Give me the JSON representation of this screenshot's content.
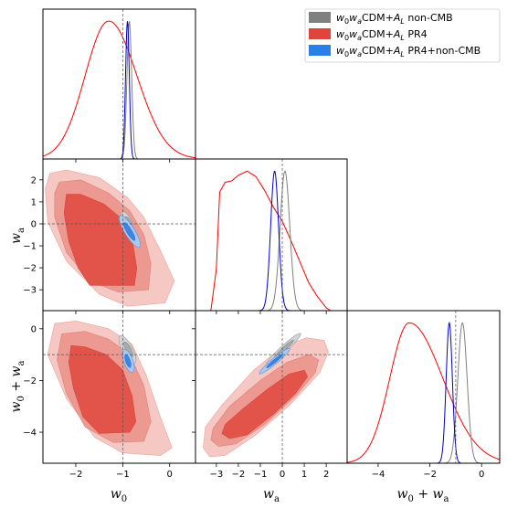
{
  "chart_data": {
    "type": "triangle-contour",
    "parameters": [
      {
        "key": "w0",
        "label_main": "w",
        "label_sub": "0"
      },
      {
        "key": "wa",
        "label_main": "w",
        "label_sub": "a"
      },
      {
        "key": "w0wa",
        "label_main": "w",
        "label_sub": "0",
        "label_suffix": " + w",
        "label_sub2": "a"
      }
    ],
    "ranges": {
      "w0": [
        -2.7,
        0.55
      ],
      "wa": [
        -3.95,
        2.95
      ],
      "w0wa": [
        -5.2,
        0.7
      ]
    },
    "ticks": {
      "w0": [
        -2,
        -1,
        0
      ],
      "wa": [
        -3,
        -2,
        -1,
        0,
        1,
        2
      ],
      "w0wa_y": [
        -4,
        -2,
        0
      ],
      "w0wa_x": [
        -4,
        -2,
        0
      ]
    },
    "tick_labels": {
      "w0": [
        "−2",
        "−1",
        "0"
      ],
      "wa": [
        "−3",
        "−2",
        "−1",
        "0",
        "1",
        "2"
      ],
      "w0wa_y": [
        "−4",
        "−2",
        "0"
      ],
      "w0wa_x": [
        "−4",
        "−2",
        "0"
      ]
    },
    "reference": {
      "w0": -1,
      "wa": 0,
      "w0wa": -1
    },
    "legend": {
      "placement": "top-right",
      "entries": [
        {
          "pre": "w",
          "sub1": "0",
          "mid": "w",
          "sub2": "a",
          "post": "CDM+",
          "al": "A",
          "alsub": "L",
          "tail": " non-CMB",
          "color": "#808080"
        },
        {
          "pre": "w",
          "sub1": "0",
          "mid": "w",
          "sub2": "a",
          "post": "CDM+",
          "al": "A",
          "alsub": "L",
          "tail": " PR4",
          "color": "#e0453b"
        },
        {
          "pre": "w",
          "sub1": "0",
          "mid": "w",
          "sub2": "a",
          "post": "CDM+",
          "al": "A",
          "alsub": "L",
          "tail": " PR4+non-CMB",
          "color": "#2b7fe5"
        }
      ]
    },
    "series": [
      {
        "color": "#808080",
        "line_color": "#808080",
        "w0": {
          "mean": -0.86,
          "sigma": 0.05
        },
        "wa": {
          "mean": 0.12,
          "sigma": 0.22
        },
        "w0wa": {
          "mean": -0.74,
          "sigma": 0.18
        }
      },
      {
        "color": "#e0453b",
        "line_color": "#ff0000",
        "w0": {
          "peak": -1.3,
          "sigma_left": 0.5,
          "sigma_right": 0.6
        },
        "wa": {
          "curve": [
            [
              -3.25,
              0
            ],
            [
              -3.0,
              0.3
            ],
            [
              -2.85,
              0.85
            ],
            [
              -2.6,
              0.92
            ],
            [
              -2.3,
              0.93
            ],
            [
              -2.0,
              0.97
            ],
            [
              -1.6,
              1.0
            ],
            [
              -1.2,
              0.96
            ],
            [
              -0.8,
              0.86
            ],
            [
              -0.4,
              0.74
            ],
            [
              0,
              0.64
            ],
            [
              0.4,
              0.5
            ],
            [
              0.8,
              0.35
            ],
            [
              1.2,
              0.2
            ],
            [
              1.6,
              0.1
            ],
            [
              2.0,
              0.02
            ],
            [
              2.2,
              0
            ]
          ]
        },
        "w0wa": {
          "peak": -2.8,
          "sigma_left": 0.75,
          "sigma_right": 1.3
        }
      },
      {
        "color": "#2b7fe5",
        "line_color": "#0000cc",
        "w0": {
          "mean": -0.9,
          "sigma": 0.04
        },
        "wa": {
          "mean": -0.35,
          "sigma": 0.18
        },
        "w0wa": {
          "mean": -1.25,
          "sigma": 0.12
        }
      }
    ]
  }
}
